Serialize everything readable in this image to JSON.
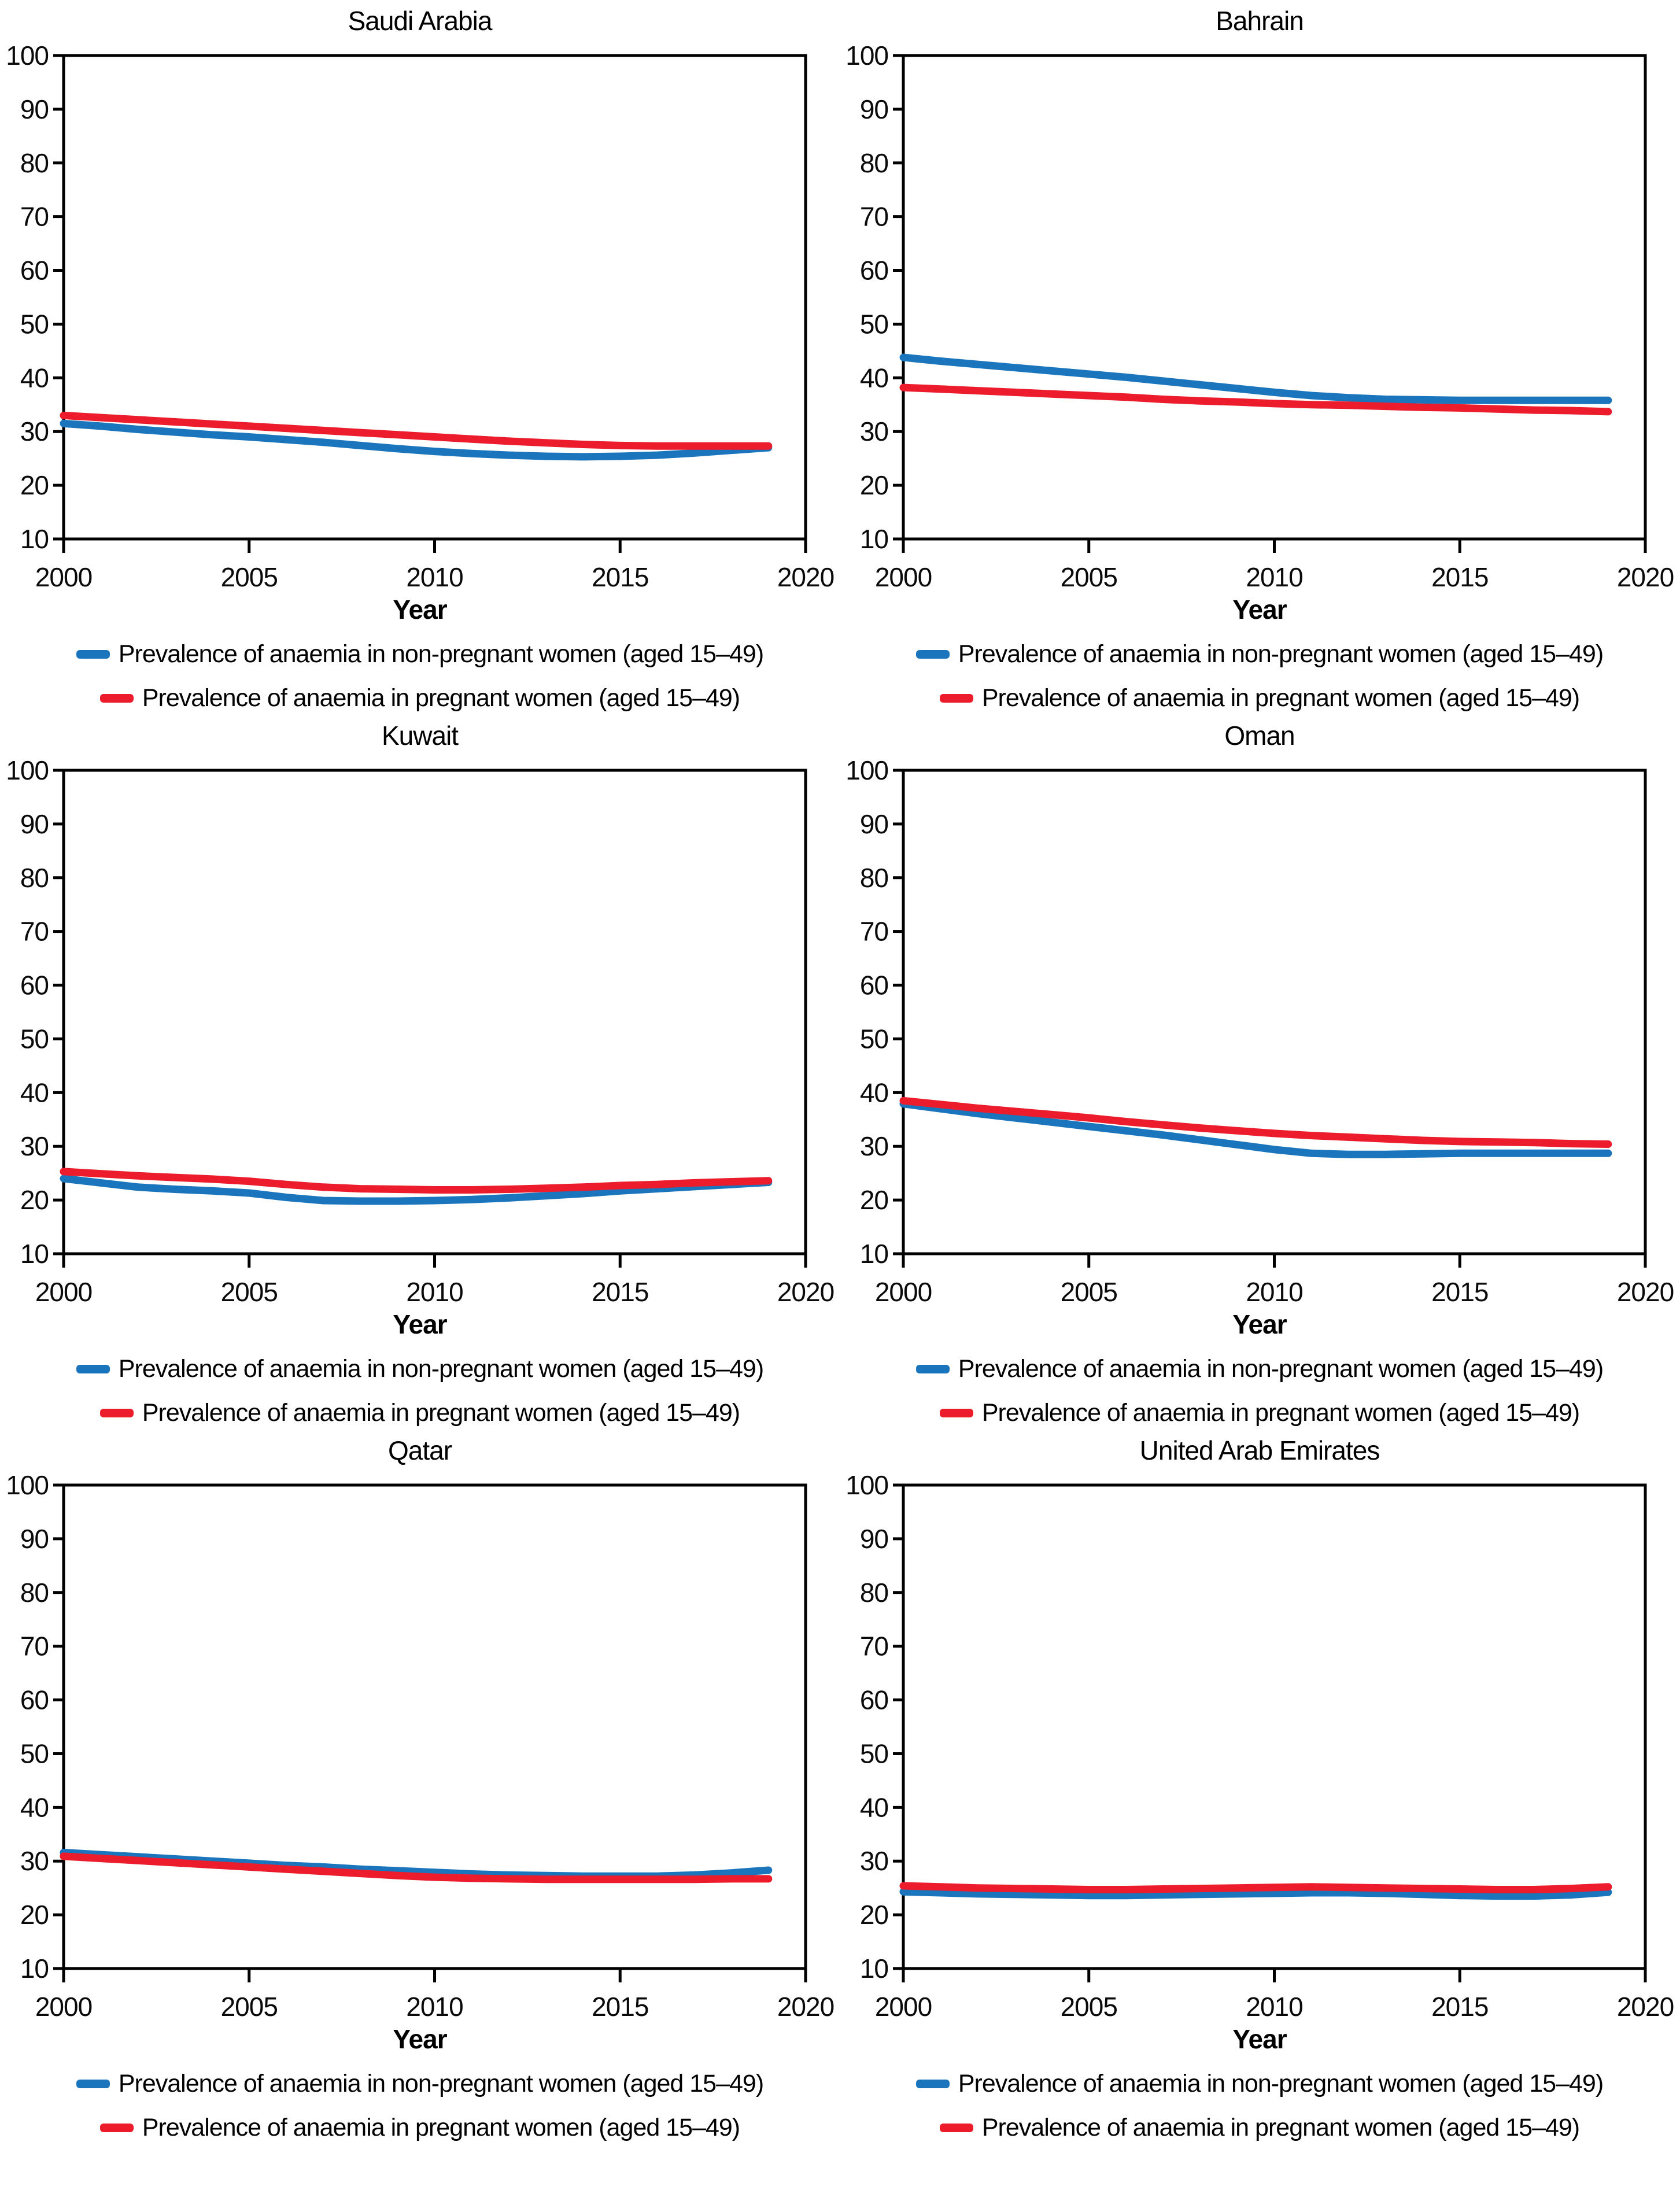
{
  "figure": {
    "x_axis_label": "Year",
    "legend": [
      {
        "key": "non_pregnant",
        "label": "Prevalence of anaemia in non-pregnant women (aged 15–49)",
        "color": "#1B75BC"
      },
      {
        "key": "pregnant",
        "label": "Prevalence of anaemia in pregnant women (aged 15–49)",
        "color": "#EC1C2C"
      }
    ],
    "axis": {
      "ymin": 10,
      "ymax": 100,
      "ystep": 10,
      "xmin": 2000,
      "xmax": 2020,
      "xticks": [
        2000,
        2005,
        2010,
        2015,
        2020
      ],
      "grid": false
    },
    "colors": {
      "axis": "#000000",
      "blue_line": "#1B75BC",
      "red_line": "#EC1C2C"
    }
  },
  "chart_data": [
    {
      "type": "line",
      "title": "Saudi Arabia",
      "xlabel": "Year",
      "ylim": [
        10,
        100
      ],
      "x": [
        2000,
        2001,
        2002,
        2003,
        2004,
        2005,
        2006,
        2007,
        2008,
        2009,
        2010,
        2011,
        2012,
        2013,
        2014,
        2015,
        2016,
        2017,
        2018,
        2019
      ],
      "series": [
        {
          "name": "Prevalence of anaemia in non-pregnant women (aged 15–49)",
          "color": "#1B75BC",
          "values": [
            31.5,
            31.0,
            30.4,
            29.9,
            29.4,
            29.0,
            28.5,
            28.0,
            27.4,
            26.8,
            26.3,
            25.9,
            25.6,
            25.4,
            25.3,
            25.4,
            25.6,
            26.0,
            26.5,
            27.0
          ]
        },
        {
          "name": "Prevalence of anaemia in pregnant women (aged 15–49)",
          "color": "#EC1C2C",
          "values": [
            33.0,
            32.6,
            32.2,
            31.8,
            31.4,
            31.0,
            30.6,
            30.2,
            29.8,
            29.4,
            29.0,
            28.6,
            28.2,
            27.9,
            27.6,
            27.4,
            27.3,
            27.3,
            27.3,
            27.3
          ]
        }
      ]
    },
    {
      "type": "line",
      "title": "Bahrain",
      "xlabel": "Year",
      "ylim": [
        10,
        100
      ],
      "x": [
        2000,
        2001,
        2002,
        2003,
        2004,
        2005,
        2006,
        2007,
        2008,
        2009,
        2010,
        2011,
        2012,
        2013,
        2014,
        2015,
        2016,
        2017,
        2018,
        2019
      ],
      "series": [
        {
          "name": "Prevalence of anaemia in non-pregnant women (aged 15–49)",
          "color": "#1B75BC",
          "values": [
            43.8,
            43.1,
            42.5,
            41.9,
            41.3,
            40.7,
            40.1,
            39.4,
            38.7,
            38.0,
            37.3,
            36.7,
            36.3,
            36.0,
            35.9,
            35.8,
            35.8,
            35.8,
            35.8,
            35.8
          ]
        },
        {
          "name": "Prevalence of anaemia in pregnant women (aged 15–49)",
          "color": "#EC1C2C",
          "values": [
            38.2,
            37.9,
            37.6,
            37.3,
            37.0,
            36.7,
            36.4,
            36.0,
            35.7,
            35.5,
            35.2,
            35.0,
            34.9,
            34.7,
            34.5,
            34.4,
            34.2,
            34.0,
            33.9,
            33.7
          ]
        }
      ]
    },
    {
      "type": "line",
      "title": "Kuwait",
      "xlabel": "Year",
      "ylim": [
        10,
        100
      ],
      "x": [
        2000,
        2001,
        2002,
        2003,
        2004,
        2005,
        2006,
        2007,
        2008,
        2009,
        2010,
        2011,
        2012,
        2013,
        2014,
        2015,
        2016,
        2017,
        2018,
        2019
      ],
      "series": [
        {
          "name": "Prevalence of anaemia in non-pregnant women (aged 15–49)",
          "color": "#1B75BC",
          "values": [
            24.0,
            23.2,
            22.4,
            22.0,
            21.7,
            21.3,
            20.5,
            19.9,
            19.8,
            19.8,
            19.9,
            20.1,
            20.4,
            20.8,
            21.2,
            21.7,
            22.1,
            22.5,
            22.9,
            23.3
          ]
        },
        {
          "name": "Prevalence of anaemia in pregnant women (aged 15–49)",
          "color": "#EC1C2C",
          "values": [
            25.3,
            24.9,
            24.5,
            24.2,
            23.9,
            23.5,
            22.9,
            22.4,
            22.1,
            22.0,
            21.9,
            21.9,
            22.0,
            22.2,
            22.4,
            22.7,
            22.9,
            23.2,
            23.4,
            23.6
          ]
        }
      ]
    },
    {
      "type": "line",
      "title": "Oman",
      "xlabel": "Year",
      "ylim": [
        10,
        100
      ],
      "x": [
        2000,
        2001,
        2002,
        2003,
        2004,
        2005,
        2006,
        2007,
        2008,
        2009,
        2010,
        2011,
        2012,
        2013,
        2014,
        2015,
        2016,
        2017,
        2018,
        2019
      ],
      "series": [
        {
          "name": "Prevalence of anaemia in non-pregnant women (aged 15–49)",
          "color": "#1B75BC",
          "values": [
            37.9,
            37.0,
            36.1,
            35.3,
            34.5,
            33.7,
            32.9,
            32.1,
            31.2,
            30.3,
            29.4,
            28.7,
            28.5,
            28.5,
            28.6,
            28.7,
            28.7,
            28.7,
            28.7,
            28.7
          ]
        },
        {
          "name": "Prevalence of anaemia in pregnant women (aged 15–49)",
          "color": "#EC1C2C",
          "values": [
            38.5,
            37.8,
            37.1,
            36.5,
            35.9,
            35.3,
            34.6,
            34.0,
            33.4,
            32.9,
            32.4,
            32.0,
            31.7,
            31.4,
            31.1,
            30.9,
            30.8,
            30.7,
            30.5,
            30.4
          ]
        }
      ]
    },
    {
      "type": "line",
      "title": "Qatar",
      "xlabel": "Year",
      "ylim": [
        10,
        100
      ],
      "x": [
        2000,
        2001,
        2002,
        2003,
        2004,
        2005,
        2006,
        2007,
        2008,
        2009,
        2010,
        2011,
        2012,
        2013,
        2014,
        2015,
        2016,
        2017,
        2018,
        2019
      ],
      "series": [
        {
          "name": "Prevalence of anaemia in non-pregnant women (aged 15–49)",
          "color": "#1B75BC",
          "values": [
            31.6,
            31.2,
            30.8,
            30.4,
            30.0,
            29.6,
            29.2,
            28.9,
            28.5,
            28.2,
            27.9,
            27.6,
            27.4,
            27.3,
            27.2,
            27.2,
            27.2,
            27.4,
            27.8,
            28.3
          ]
        },
        {
          "name": "Prevalence of anaemia in pregnant women (aged 15–49)",
          "color": "#EC1C2C",
          "values": [
            30.9,
            30.5,
            30.1,
            29.7,
            29.3,
            28.9,
            28.5,
            28.1,
            27.7,
            27.3,
            27.0,
            26.8,
            26.7,
            26.6,
            26.6,
            26.6,
            26.6,
            26.6,
            26.7,
            26.7
          ]
        }
      ]
    },
    {
      "type": "line",
      "title": "United Arab Emirates",
      "xlabel": "Year",
      "ylim": [
        10,
        100
      ],
      "x": [
        2000,
        2001,
        2002,
        2003,
        2004,
        2005,
        2006,
        2007,
        2008,
        2009,
        2010,
        2011,
        2012,
        2013,
        2014,
        2015,
        2016,
        2017,
        2018,
        2019
      ],
      "series": [
        {
          "name": "Prevalence of anaemia in non-pregnant women (aged 15–49)",
          "color": "#1B75BC",
          "values": [
            24.3,
            24.1,
            23.9,
            23.8,
            23.7,
            23.6,
            23.6,
            23.7,
            23.8,
            23.9,
            24.0,
            24.1,
            24.1,
            24.0,
            23.8,
            23.6,
            23.5,
            23.5,
            23.7,
            24.2
          ]
        },
        {
          "name": "Prevalence of anaemia in pregnant women (aged 15–49)",
          "color": "#EC1C2C",
          "values": [
            25.4,
            25.2,
            25.0,
            24.9,
            24.8,
            24.7,
            24.7,
            24.8,
            24.9,
            25.0,
            25.1,
            25.2,
            25.1,
            25.0,
            24.9,
            24.8,
            24.7,
            24.7,
            24.9,
            25.2
          ]
        }
      ]
    }
  ]
}
